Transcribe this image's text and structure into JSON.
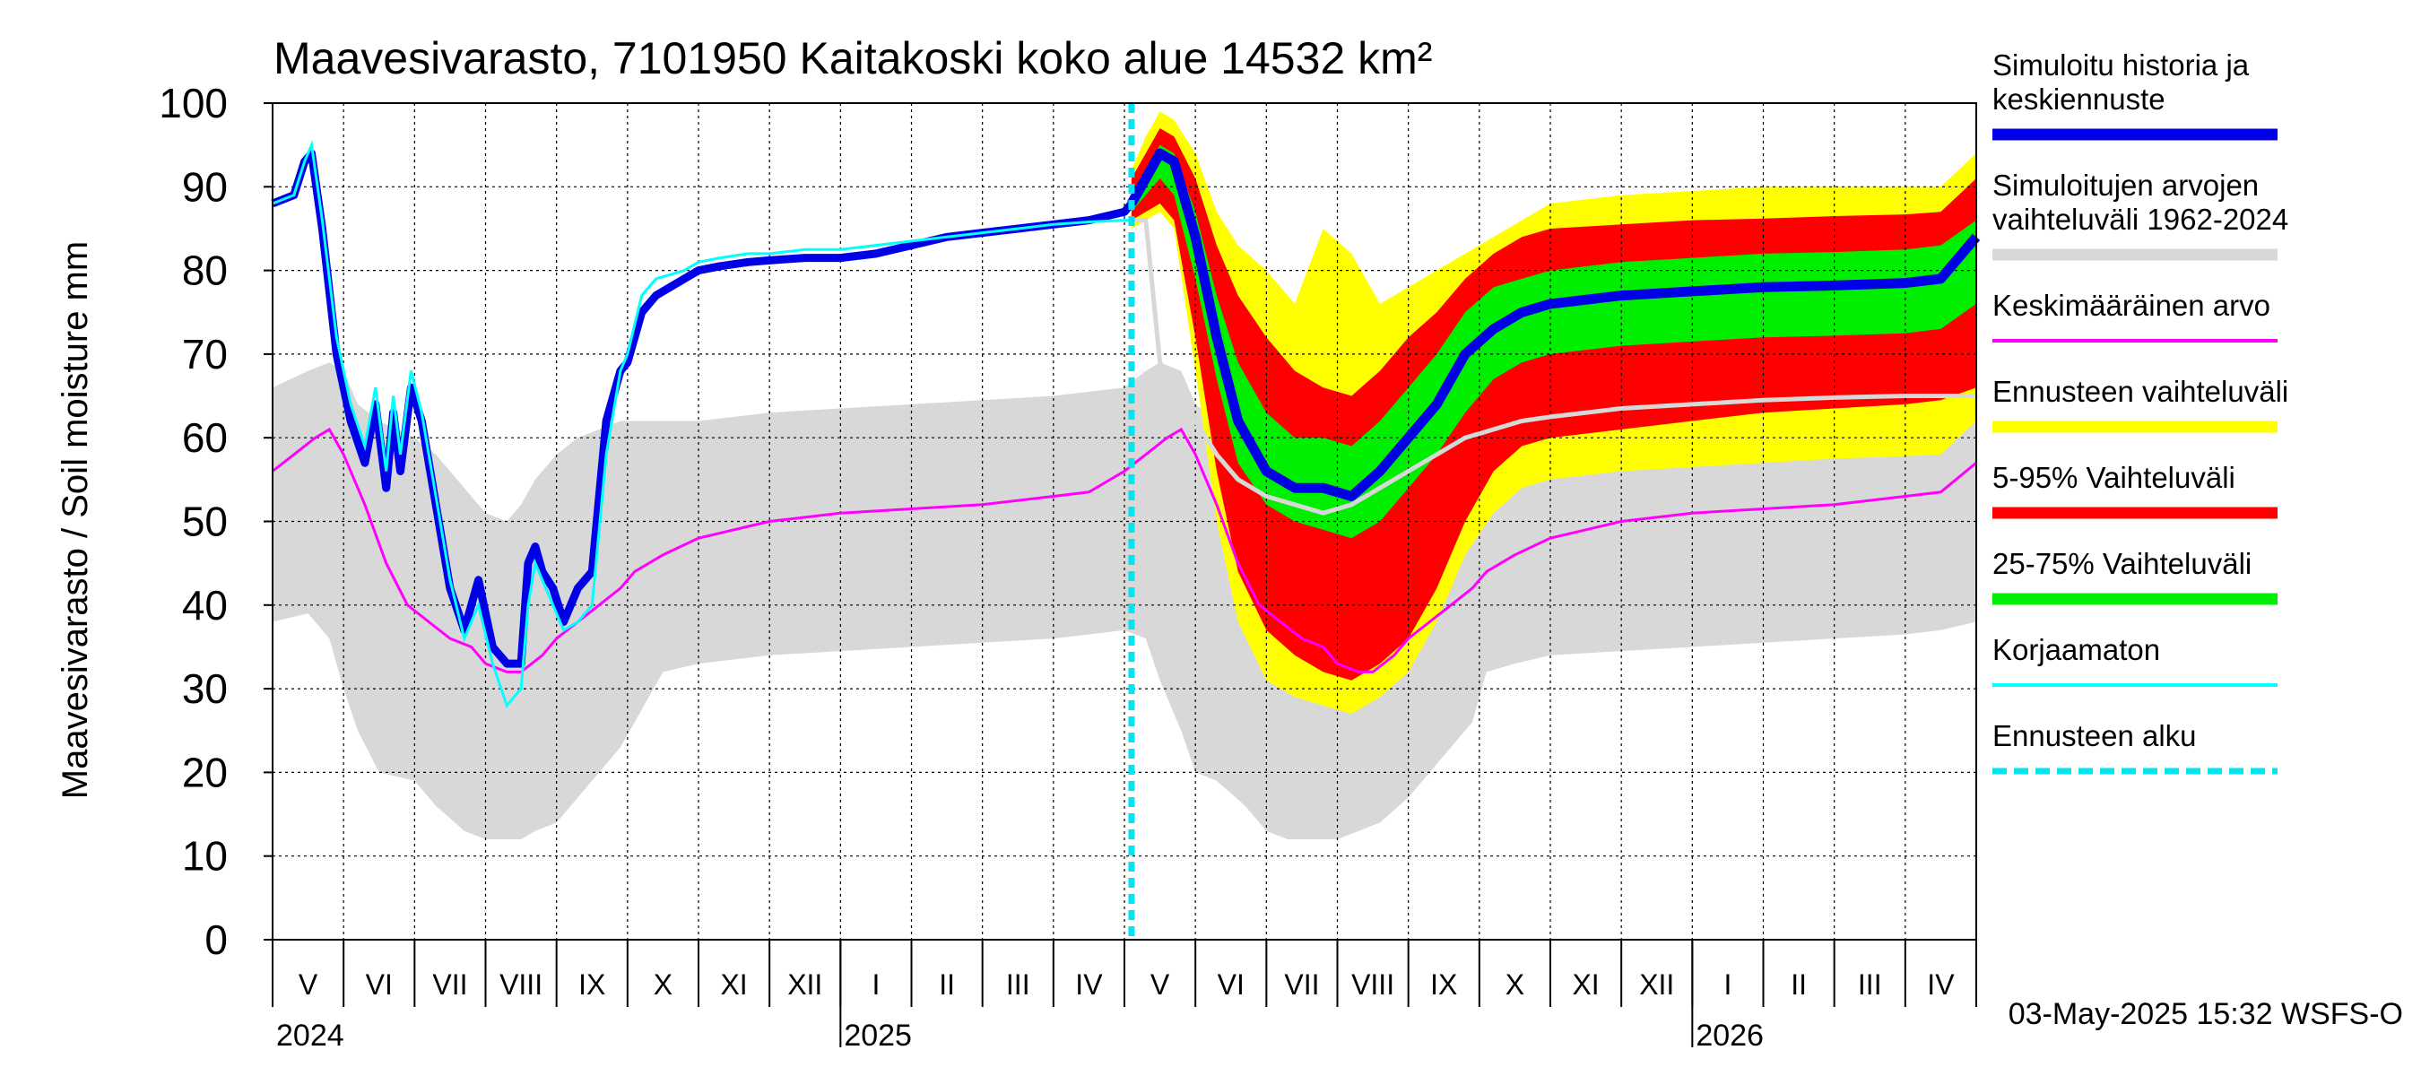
{
  "chart_data": {
    "type": "area",
    "title": "Maavesivarasto, 7101950 Kaitakoski koko alue 14532 km²",
    "ylabel": "Maavesivarasto / Soil moisture   mm",
    "ylim": [
      0,
      100
    ],
    "yticks": [
      0,
      10,
      20,
      30,
      40,
      50,
      60,
      70,
      80,
      90,
      100
    ],
    "xrange_month_index": [
      0,
      24
    ],
    "forecast_start_month_index": 12.1,
    "months": [
      {
        "label": "V",
        "center": 0.5
      },
      {
        "label": "VI",
        "center": 1.5
      },
      {
        "label": "VII",
        "center": 2.5
      },
      {
        "label": "VIII",
        "center": 3.5
      },
      {
        "label": "IX",
        "center": 4.5
      },
      {
        "label": "X",
        "center": 5.5
      },
      {
        "label": "XI",
        "center": 6.5
      },
      {
        "label": "XII",
        "center": 7.5
      },
      {
        "label": "I",
        "center": 8.5
      },
      {
        "label": "II",
        "center": 9.5
      },
      {
        "label": "III",
        "center": 10.5
      },
      {
        "label": "IV",
        "center": 11.5
      },
      {
        "label": "V",
        "center": 12.5
      },
      {
        "label": "VI",
        "center": 13.5
      },
      {
        "label": "VII",
        "center": 14.5
      },
      {
        "label": "VIII",
        "center": 15.5
      },
      {
        "label": "IX",
        "center": 16.5
      },
      {
        "label": "X",
        "center": 17.5
      },
      {
        "label": "XI",
        "center": 18.5
      },
      {
        "label": "XII",
        "center": 19.5
      },
      {
        "label": "I",
        "center": 20.5
      },
      {
        "label": "II",
        "center": 21.5
      },
      {
        "label": "III",
        "center": 22.5
      },
      {
        "label": "IV",
        "center": 23.5
      }
    ],
    "years": [
      {
        "label": "2024",
        "at": 0
      },
      {
        "label": "2025",
        "at": 8
      },
      {
        "label": "2026",
        "at": 20
      }
    ],
    "year_boundaries": [
      8,
      20
    ],
    "timestamp": "03-May-2025 15:32 WSFS-O",
    "colors": {
      "history": "#0000e6",
      "range_hist": "#d8d8d8",
      "mean": "#ff00ff",
      "forecast_range": "#ffff00",
      "p5_95": "#ff0000",
      "p25_75": "#00ee00",
      "uncorrected": "#00ffff",
      "forecast_start": "#00e5ee",
      "median_hist_line": "#d8d8d8"
    },
    "legend": [
      {
        "label": "Simuloitu historia ja\nkeskiennuste",
        "color": "#0000e6",
        "style": "thick"
      },
      {
        "label": "Simuloitujen arvojen\nvaihteluväli 1962-2024",
        "color": "#d8d8d8",
        "style": "thick"
      },
      {
        "label": "Keskimääräinen arvo",
        "color": "#ff00ff",
        "style": "thin"
      },
      {
        "label": "Ennusteen vaihteluväli",
        "color": "#ffff00",
        "style": "thick"
      },
      {
        "label": "5-95% Vaihteluväli",
        "color": "#ff0000",
        "style": "thick"
      },
      {
        "label": "25-75% Vaihteluväli",
        "color": "#00ee00",
        "style": "thick"
      },
      {
        "label": "Korjaamaton",
        "color": "#00ffff",
        "style": "thin"
      },
      {
        "label": "Ennusteen alku",
        "color": "#00e5ee",
        "style": "dashed"
      }
    ],
    "series": {
      "range_hist": {
        "x": [
          0,
          0.5,
          0.8,
          1,
          1.2,
          1.5,
          2,
          2.3,
          2.7,
          3,
          3.3,
          3.5,
          3.7,
          4,
          4.3,
          4.6,
          4.9,
          5.1,
          5.5,
          6,
          7,
          8,
          9,
          10,
          11,
          11.5,
          12,
          12.3,
          12.5,
          12.8,
          13,
          13.3,
          13.7,
          14,
          14.3,
          14.6,
          15,
          15.3,
          15.6,
          16,
          16.3,
          16.6,
          16.9,
          17.1,
          17.5,
          18,
          19,
          20,
          21,
          22,
          23,
          23.5,
          24
        ],
        "upper": [
          66,
          68,
          69,
          68,
          64,
          62,
          60,
          58,
          54,
          51,
          50,
          52,
          55,
          58,
          60,
          61,
          62,
          62,
          62,
          62,
          63,
          63.5,
          64,
          64.5,
          65,
          65.5,
          66,
          68,
          69,
          68,
          64,
          62,
          60,
          58,
          54,
          51,
          50,
          52,
          55,
          58,
          60,
          61,
          62,
          62,
          62,
          62,
          63,
          63.5,
          64,
          64.5,
          65,
          65.5,
          66
        ],
        "lower": [
          38,
          39,
          36,
          30,
          25,
          20,
          19,
          16,
          13,
          12,
          12,
          12,
          13,
          14,
          17,
          20,
          23,
          26,
          32,
          33,
          34,
          34.5,
          35,
          35.5,
          36,
          36.5,
          37,
          36,
          31,
          25,
          20,
          19,
          16,
          13,
          12,
          12,
          12,
          13,
          14,
          17,
          20,
          23,
          26,
          32,
          33,
          34,
          34.5,
          35,
          35.5,
          36,
          36.5,
          37,
          38
        ]
      },
      "mean": {
        "x": [
          0,
          0.3,
          0.6,
          0.8,
          1,
          1.3,
          1.6,
          1.9,
          2.2,
          2.5,
          2.8,
          3,
          3.3,
          3.5,
          3.8,
          4,
          4.3,
          4.6,
          4.9,
          5.1,
          5.5,
          6,
          7,
          8,
          9,
          10,
          11,
          11.5,
          12,
          12.3,
          12.6,
          12.8,
          13,
          13.3,
          13.6,
          13.9,
          14.2,
          14.5,
          14.8,
          15,
          15.3,
          15.5,
          15.8,
          16,
          16.3,
          16.6,
          16.9,
          17.1,
          17.5,
          18,
          19,
          20,
          21,
          22,
          23,
          23.5,
          24
        ],
        "y": [
          56,
          58,
          60,
          61,
          58,
          52,
          45,
          40,
          38,
          36,
          35,
          33,
          32,
          32,
          34,
          36,
          38,
          40,
          42,
          44,
          46,
          48,
          50,
          51,
          51.5,
          52,
          53,
          53.5,
          56,
          58,
          60,
          61,
          58,
          52,
          45,
          40,
          38,
          36,
          35,
          33,
          32,
          32,
          34,
          36,
          38,
          40,
          42,
          44,
          46,
          48,
          50,
          51,
          51.5,
          52,
          53,
          53.5,
          57
        ]
      },
      "history": {
        "x": [
          0,
          0.3,
          0.45,
          0.55,
          0.7,
          0.9,
          1.1,
          1.3,
          1.45,
          1.6,
          1.7,
          1.8,
          1.95,
          2.1,
          2.3,
          2.5,
          2.7,
          2.9,
          3.1,
          3.3,
          3.5,
          3.6,
          3.7,
          3.8,
          3.95,
          4.1,
          4.3,
          4.5,
          4.7,
          4.9,
          5.0,
          5.2,
          5.4,
          5.6,
          5.8,
          6,
          6.3,
          6.7,
          7,
          7.5,
          8,
          8.5,
          9,
          9.5,
          10,
          10.5,
          11,
          11.5,
          12,
          12.1
        ],
        "y": [
          88,
          89,
          93,
          94,
          85,
          70,
          62,
          57,
          64,
          54,
          63,
          56,
          66,
          62,
          52,
          42,
          37,
          43,
          35,
          33,
          33,
          45,
          47,
          44,
          42,
          38,
          42,
          44,
          62,
          68,
          69,
          75,
          77,
          78,
          79,
          80,
          80.5,
          81,
          81.2,
          81.5,
          81.5,
          82,
          83,
          84,
          84.5,
          85,
          85.5,
          86,
          87,
          88
        ]
      },
      "uncorrected": {
        "x": [
          0,
          0.3,
          0.45,
          0.55,
          0.7,
          0.9,
          1.1,
          1.3,
          1.45,
          1.6,
          1.7,
          1.8,
          1.95,
          2.1,
          2.3,
          2.5,
          2.7,
          2.9,
          3.1,
          3.3,
          3.5,
          3.6,
          3.7,
          3.8,
          3.95,
          4.1,
          4.3,
          4.5,
          4.7,
          4.9,
          5.0,
          5.2,
          5.4,
          5.6,
          5.8,
          6,
          6.3,
          6.7,
          7,
          7.5,
          8,
          8.5,
          9,
          9.5,
          10,
          10.5,
          11,
          11.5,
          12,
          12.1
        ],
        "y": [
          88,
          89,
          93,
          95,
          86,
          72,
          64,
          59,
          66,
          56,
          65,
          58,
          68,
          63,
          53,
          43,
          36,
          40,
          33,
          28,
          30,
          40,
          45,
          43,
          40,
          37,
          38,
          40,
          58,
          68,
          70,
          77,
          79,
          79.5,
          80,
          81,
          81.5,
          82,
          82,
          82.5,
          82.5,
          83,
          83.5,
          84,
          84.5,
          85,
          85.5,
          85.8,
          86,
          86
        ]
      },
      "forecast": {
        "x": [
          12.1,
          12.3,
          12.5,
          12.7,
          13,
          13.3,
          13.6,
          14,
          14.4,
          14.8,
          15.2,
          15.6,
          16,
          16.4,
          16.8,
          17.2,
          17.6,
          18,
          19,
          20,
          21,
          22,
          23,
          23.5,
          24
        ],
        "median": [
          88,
          91,
          94,
          93,
          84,
          72,
          62,
          56,
          54,
          54,
          53,
          56,
          60,
          64,
          70,
          73,
          75,
          76,
          77,
          77.5,
          78,
          78.2,
          78.5,
          79,
          84
        ],
        "p25": [
          87,
          89,
          91,
          89,
          79,
          67,
          57,
          52,
          50,
          49,
          48,
          50,
          54,
          58,
          63,
          67,
          69,
          70,
          71,
          71.5,
          72,
          72.2,
          72.5,
          73,
          76
        ],
        "p75": [
          89,
          92,
          95,
          94,
          87,
          77,
          69,
          63,
          60,
          60,
          59,
          62,
          66,
          70,
          75,
          78,
          79,
          80,
          81,
          81.5,
          82,
          82.2,
          82.5,
          83,
          86
        ],
        "p5": [
          86,
          87,
          88,
          86,
          72,
          56,
          44,
          37,
          34,
          32,
          31,
          33,
          36,
          42,
          50,
          56,
          59,
          60,
          61,
          62,
          63,
          63.5,
          64,
          64.5,
          66
        ],
        "p95": [
          91,
          94,
          97,
          96,
          91,
          83,
          77,
          72,
          68,
          66,
          65,
          68,
          72,
          75,
          79,
          82,
          84,
          85,
          85.5,
          86,
          86.2,
          86.5,
          86.7,
          87,
          91
        ],
        "min": [
          85,
          86,
          87,
          85,
          68,
          50,
          38,
          31,
          29,
          28,
          27,
          29,
          32,
          38,
          46,
          51,
          54,
          55,
          56,
          56.5,
          57,
          57.5,
          57.8,
          58,
          62
        ],
        "max": [
          92,
          96,
          99,
          98,
          94,
          87,
          83,
          80,
          76,
          85,
          82,
          76,
          78,
          80,
          82,
          84,
          86,
          88,
          89,
          89.5,
          90,
          90,
          90,
          90,
          94
        ],
        "hist_median": [
          86,
          86,
          69,
          66,
          62,
          58,
          55,
          53,
          52,
          51,
          52,
          54,
          56,
          58,
          60,
          61,
          62,
          62.5,
          63.5,
          64,
          64.5,
          64.8,
          65,
          65,
          65
        ]
      }
    }
  }
}
